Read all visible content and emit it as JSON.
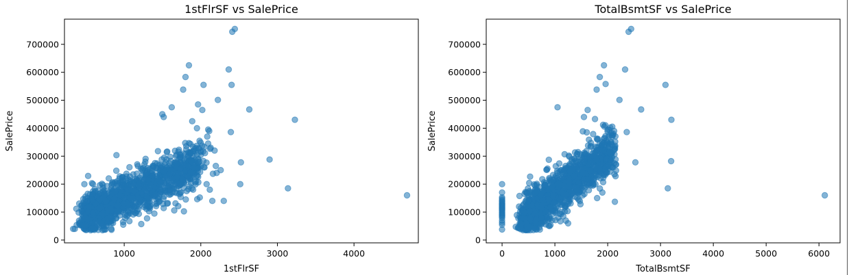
{
  "chart_data": [
    {
      "type": "scatter",
      "title": "1stFlrSF vs SalePrice",
      "xlabel": "1stFlrSF",
      "ylabel": "SalePrice",
      "xlim": [
        220,
        4840
      ],
      "ylim": [
        -10000,
        790000
      ],
      "xticks": [
        1000,
        2000,
        3000,
        4000
      ],
      "yticks": [
        0,
        100000,
        200000,
        300000,
        400000,
        500000,
        600000,
        700000
      ],
      "color": "#1f77b4",
      "cluster": {
        "x_min": 500,
        "x_max": 2000,
        "base": 22000,
        "slope": 127,
        "spread": 42000,
        "count": 1300,
        "seed": 7
      },
      "outliers": [
        [
          4692,
          160000
        ],
        [
          3228,
          430000
        ],
        [
          3138,
          185000
        ],
        [
          2898,
          288000
        ],
        [
          2633,
          467000
        ],
        [
          2524,
          278000
        ],
        [
          2515,
          200000
        ],
        [
          2444,
          755000
        ],
        [
          2411,
          745000
        ],
        [
          2402,
          555000
        ],
        [
          2392,
          386000
        ],
        [
          2364,
          610000
        ],
        [
          2223,
          501000
        ],
        [
          2207,
          240000
        ],
        [
          2196,
          265000
        ],
        [
          2158,
          237000
        ],
        [
          2129,
          330000
        ],
        [
          2117,
          180000
        ],
        [
          2110,
          390000
        ],
        [
          2097,
          395000
        ],
        [
          2084,
          370000
        ],
        [
          2076,
          200000
        ],
        [
          2036,
          555000
        ],
        [
          2020,
          465000
        ],
        [
          1953,
          146000
        ],
        [
          1845,
          625000
        ],
        [
          1800,
          583000
        ],
        [
          1770,
          538000
        ],
        [
          1620,
          475000
        ],
        [
          1516,
          440000
        ],
        [
          1498,
          450000
        ],
        [
          355,
          40000
        ],
        [
          334,
          40000
        ],
        [
          480,
          200000
        ],
        [
          520,
          140000
        ],
        [
          2300,
          140000
        ],
        [
          2150,
          140000
        ],
        [
          1900,
          180000
        ],
        [
          600,
          40000
        ],
        [
          700,
          60000
        ],
        [
          2260,
          250000
        ],
        [
          2180,
          320000
        ],
        [
          1950,
          400000
        ],
        [
          1888,
          425000
        ],
        [
          1964,
          485000
        ]
      ]
    },
    {
      "type": "scatter",
      "title": "TotalBsmtSF vs SalePrice",
      "xlabel": "TotalBsmtSF",
      "ylabel": "SalePrice",
      "xlim": [
        -300,
        6400
      ],
      "ylim": [
        -10000,
        790000
      ],
      "xticks": [
        0,
        1000,
        2000,
        3000,
        4000,
        5000,
        6000
      ],
      "yticks": [
        0,
        100000,
        200000,
        300000,
        400000,
        500000,
        600000,
        700000
      ],
      "color": "#1f77b4",
      "cluster": {
        "x_min": 400,
        "x_max": 2100,
        "base": 12000,
        "slope": 150,
        "spread": 42000,
        "count": 1260,
        "seed": 11
      },
      "outliers": [
        [
          6110,
          160000
        ],
        [
          3206,
          430000
        ],
        [
          3200,
          282000
        ],
        [
          3138,
          185000
        ],
        [
          3094,
          555000
        ],
        [
          2633,
          467000
        ],
        [
          2524,
          278000
        ],
        [
          2444,
          755000
        ],
        [
          2396,
          745000
        ],
        [
          2360,
          386000
        ],
        [
          2330,
          610000
        ],
        [
          2223,
          501000
        ],
        [
          2158,
          270000
        ],
        [
          2136,
          137000
        ],
        [
          2121,
          390000
        ],
        [
          2078,
          260000
        ],
        [
          2000,
          395000
        ],
        [
          1960,
          558000
        ],
        [
          1930,
          625000
        ],
        [
          1850,
          583000
        ],
        [
          1790,
          538000
        ],
        [
          1620,
          465000
        ],
        [
          1050,
          475000
        ],
        [
          1550,
          440000
        ],
        [
          500,
          140000
        ],
        [
          1900,
          170000
        ],
        [
          1800,
          150000
        ],
        [
          1980,
          240000
        ],
        [
          640,
          60000
        ],
        [
          1250,
          60000
        ]
      ],
      "zero_basement": {
        "x": 0,
        "values": [
          37900,
          55000,
          62000,
          70000,
          79000,
          84000,
          88000,
          91000,
          95000,
          99000,
          103000,
          107000,
          110000,
          113000,
          116000,
          119000,
          122000,
          125000,
          128000,
          131000,
          135000,
          139000,
          143000,
          148000,
          153000,
          170000,
          200000
        ]
      }
    }
  ]
}
